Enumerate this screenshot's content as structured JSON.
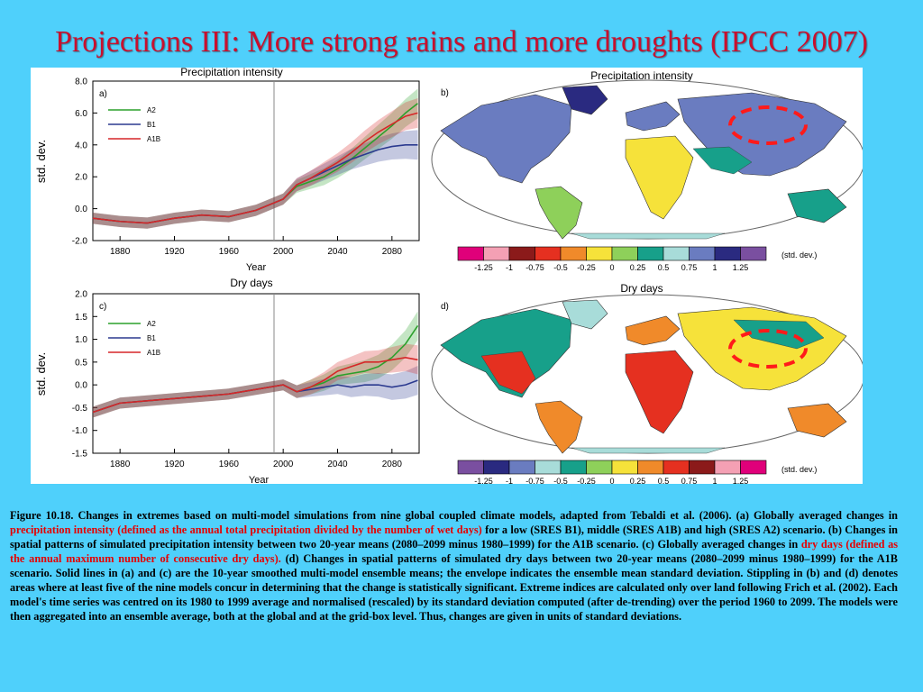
{
  "title": "Projections III: More strong rains and more droughts (IPCC 2007)",
  "colors": {
    "background": "#4fd0fb",
    "title": "#c8102e",
    "highlight": "#e60000",
    "A2": "#2ca02c",
    "B1": "#2b3a8f",
    "A1B": "#d62728",
    "circle": "#ff1a1a"
  },
  "panels": {
    "a": {
      "letter": "a)",
      "title": "Precipitation intensity",
      "ylabel": "std. dev.",
      "xlabel": "Year",
      "yticks": [
        "8.0",
        "6.0",
        "4.0",
        "2.0",
        "0.0",
        "-2.0"
      ],
      "xticks": [
        "1880",
        "1920",
        "1960",
        "2000",
        "2040",
        "2080"
      ],
      "legend": [
        "A2",
        "B1",
        "A1B"
      ]
    },
    "b": {
      "letter": "b)",
      "title": "Precipitation intensity",
      "colorbar_labels": [
        "-1.25",
        "-1",
        "-0.75",
        "-0.5",
        "-0.25",
        "0",
        "0.25",
        "0.5",
        "0.75",
        "1",
        "1.25"
      ],
      "colorbar_unit": "(std. dev.)",
      "colorbar_colors": [
        "#e0007a",
        "#f4a0b4",
        "#8b1a1a",
        "#e53020",
        "#f08a2a",
        "#f6e23a",
        "#8ed05a",
        "#17a08a",
        "#a8dcd9",
        "#6a7cc0",
        "#2a2a80",
        "#7a4fa0"
      ]
    },
    "c": {
      "letter": "c)",
      "title": "Dry days",
      "ylabel": "std. dev.",
      "xlabel": "Year",
      "yticks": [
        "2.0",
        "1.5",
        "1.0",
        "0.5",
        "0.0",
        "-0.5",
        "-1.0",
        "-1.5"
      ],
      "xticks": [
        "1880",
        "1920",
        "1960",
        "2000",
        "2040",
        "2080"
      ],
      "legend": [
        "A2",
        "B1",
        "A1B"
      ]
    },
    "d": {
      "letter": "d)",
      "title": "Dry days",
      "colorbar_labels": [
        "-1.25",
        "-1",
        "-0.75",
        "-0.5",
        "-0.25",
        "0",
        "0.25",
        "0.5",
        "0.75",
        "1",
        "1.25"
      ],
      "colorbar_unit": "(std. dev.)",
      "colorbar_colors": [
        "#7a4fa0",
        "#2a2a80",
        "#6a7cc0",
        "#a8dcd9",
        "#17a08a",
        "#8ed05a",
        "#f6e23a",
        "#f08a2a",
        "#e53020",
        "#8b1a1a",
        "#f4a0b4",
        "#e0007a"
      ]
    }
  },
  "chart_data": [
    {
      "type": "line",
      "title": "Precipitation intensity",
      "xlabel": "Year",
      "ylabel": "std. dev.",
      "xlim": [
        1860,
        2100
      ],
      "ylim": [
        -2.0,
        8.0
      ],
      "x": [
        1860,
        1880,
        1900,
        1920,
        1940,
        1960,
        1980,
        2000,
        2010,
        2020,
        2030,
        2040,
        2050,
        2060,
        2070,
        2080,
        2090,
        2099
      ],
      "series": [
        {
          "name": "A2",
          "values": [
            -0.6,
            -0.8,
            -0.9,
            -0.6,
            -0.4,
            -0.5,
            -0.1,
            0.6,
            1.4,
            1.7,
            2.0,
            2.5,
            3.1,
            3.8,
            4.5,
            5.2,
            6.0,
            6.6
          ]
        },
        {
          "name": "B1",
          "values": [
            -0.6,
            -0.8,
            -0.9,
            -0.6,
            -0.4,
            -0.5,
            -0.1,
            0.6,
            1.5,
            1.9,
            2.3,
            2.7,
            3.1,
            3.4,
            3.7,
            3.9,
            4.0,
            4.0
          ]
        },
        {
          "name": "A1B",
          "values": [
            -0.6,
            -0.8,
            -0.9,
            -0.6,
            -0.4,
            -0.5,
            -0.1,
            0.6,
            1.5,
            1.9,
            2.4,
            2.9,
            3.5,
            4.2,
            4.8,
            5.3,
            5.8,
            6.0
          ]
        }
      ]
    },
    {
      "type": "line",
      "title": "Dry days",
      "xlabel": "Year",
      "ylabel": "std. dev.",
      "xlim": [
        1860,
        2100
      ],
      "ylim": [
        -1.5,
        2.0
      ],
      "x": [
        1860,
        1880,
        1900,
        1920,
        1940,
        1960,
        1980,
        2000,
        2010,
        2020,
        2030,
        2040,
        2050,
        2060,
        2070,
        2080,
        2090,
        2099
      ],
      "series": [
        {
          "name": "A2",
          "values": [
            -0.6,
            -0.4,
            -0.35,
            -0.3,
            -0.25,
            -0.2,
            -0.1,
            0.0,
            -0.15,
            -0.05,
            0.05,
            0.2,
            0.25,
            0.3,
            0.4,
            0.6,
            0.9,
            1.3
          ]
        },
        {
          "name": "B1",
          "values": [
            -0.6,
            -0.4,
            -0.35,
            -0.3,
            -0.25,
            -0.2,
            -0.1,
            0.0,
            -0.15,
            -0.1,
            -0.05,
            0.0,
            -0.05,
            0.0,
            0.0,
            -0.05,
            0.0,
            0.1
          ]
        },
        {
          "name": "A1B",
          "values": [
            -0.6,
            -0.4,
            -0.35,
            -0.3,
            -0.25,
            -0.2,
            -0.1,
            0.0,
            -0.15,
            -0.05,
            0.1,
            0.3,
            0.4,
            0.5,
            0.5,
            0.55,
            0.6,
            0.55
          ]
        }
      ]
    }
  ],
  "caption": {
    "p1": "Figure 10.18. Changes in extremes based on multi-model simulations from nine global coupled climate models, adapted from Tebaldi et al. (2006). (a) Globally averaged changes in ",
    "h1": "precipitation intensity (defined as the annual total precipitation divided by the number of wet days)",
    "p2": " for a low (SRES B1), middle (SRES A1B) and high (SRES A2) scenario. (b) Changes in spatial patterns of simulated precipitation intensity between two 20-year means (2080–2099 minus 1980–1999) for the A1B scenario. (c) Globally averaged changes in ",
    "h2": "dry days (defined as the annual maximum number of consecutive dry days).",
    "p3": " (d) Changes in spatial patterns of simulated dry days between two 20-year means (2080–2099 minus 1980–1999) for the A1B scenario. Solid lines in (a) and (c) are the 10-year smoothed multi-model ensemble means; the envelope indicates the ensemble mean standard deviation. Stippling in (b) and (d) denotes areas where at least five of the nine models concur in determining that the change is statistically significant. Extreme indices are calculated only over land following Frich et al. (2002). Each model's time series was centred on its 1980 to 1999 average and normalised (rescaled) by its standard deviation computed (after de-trending) over the period 1960 to 2099. The models were then aggregated into an ensemble average, both at the global and at the grid-box level. Thus, changes are given in units of standard deviations."
  }
}
